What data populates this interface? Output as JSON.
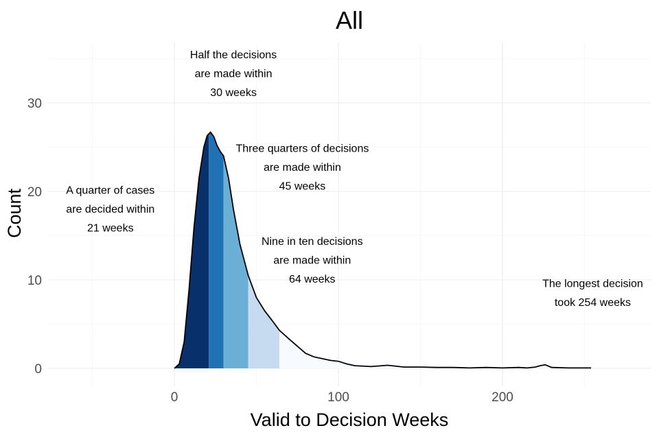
{
  "chart_data": {
    "type": "area",
    "title": "All",
    "xlabel": "Valid to Decision Weeks",
    "ylabel": "Count",
    "xlim": [
      -50,
      290
    ],
    "ylim": [
      -1,
      35
    ],
    "x_ticks": [
      0,
      100,
      200
    ],
    "y_ticks": [
      0,
      10,
      20,
      30
    ],
    "grid": true,
    "legend": "none",
    "density_curve": {
      "x": [
        0,
        3,
        6,
        9,
        12,
        15,
        18,
        20,
        22,
        24,
        26,
        28,
        30,
        33,
        36,
        40,
        45,
        50,
        55,
        60,
        64,
        70,
        75,
        80,
        85,
        90,
        95,
        100,
        105,
        110,
        120,
        130,
        140,
        150,
        160,
        170,
        180,
        190,
        200,
        210,
        215,
        220,
        223,
        226,
        230,
        240,
        254
      ],
      "y": [
        0,
        0.5,
        3,
        9,
        16,
        21.5,
        25,
        26.3,
        26.7,
        26.2,
        25.2,
        24.5,
        24,
        21.5,
        18,
        14,
        10.5,
        8,
        6.5,
        5.3,
        4.3,
        3.3,
        2.5,
        1.7,
        1.3,
        1.1,
        0.9,
        0.8,
        0.5,
        0.3,
        0.2,
        0.35,
        0.15,
        0.15,
        0.1,
        0.1,
        0.05,
        0.1,
        0.05,
        0.1,
        0.05,
        0.15,
        0.3,
        0.4,
        0.1,
        0.05,
        0.05
      ]
    },
    "quantile_bands": [
      {
        "from": 0,
        "to": 21,
        "color": "#08306b"
      },
      {
        "from": 21,
        "to": 30,
        "color": "#2171b5"
      },
      {
        "from": 30,
        "to": 45,
        "color": "#6baed6"
      },
      {
        "from": 45,
        "to": 64,
        "color": "#c6dbef"
      },
      {
        "from": 64,
        "to": 254,
        "color": "#f7fbff"
      }
    ],
    "annotations": [
      {
        "lines": [
          "A quarter of cases",
          "are decided within",
          "21 weeks"
        ],
        "x": -39,
        "y": 18
      },
      {
        "lines": [
          "Half the decisions",
          "are made within",
          "30 weeks"
        ],
        "x": 36,
        "y": 33.3
      },
      {
        "lines": [
          "Three quarters of decisions",
          "are made within",
          "45 weeks"
        ],
        "x": 78,
        "y": 22.7
      },
      {
        "lines": [
          "Nine in ten decisions",
          "are made within",
          "64 weeks"
        ],
        "x": 84,
        "y": 12.2
      },
      {
        "lines": [
          "The longest decision",
          "took 254 weeks"
        ],
        "x": 255,
        "y": 8.5
      }
    ]
  }
}
